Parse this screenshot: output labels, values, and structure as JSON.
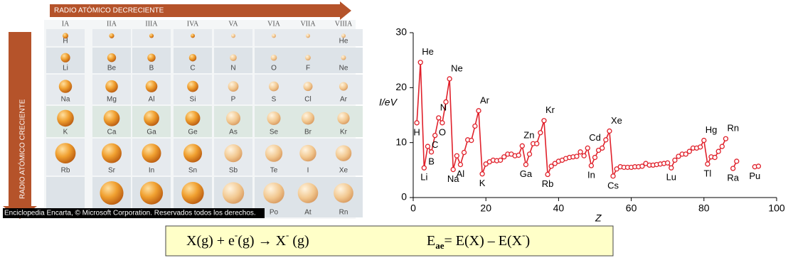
{
  "table": {
    "title_top": "RADIO ATÓMICO DECRECIENTE",
    "title_side": "RADIO ATÓMICO CRECIENTE",
    "groups": [
      "IA",
      "IIA",
      "IIIA",
      "IVA",
      "VA",
      "VIA",
      "VIIA",
      "VIIIA"
    ],
    "rows": [
      [
        "H",
        null,
        null,
        null,
        null,
        null,
        null,
        "He"
      ],
      [
        "Li",
        "Be",
        "B",
        "C",
        "N",
        "O",
        "F",
        "Ne"
      ],
      [
        "Na",
        "Mg",
        "Al",
        "Si",
        "P",
        "S",
        "Cl",
        "Ar"
      ],
      [
        "K",
        "Ca",
        "Ga",
        "Ge",
        "As",
        "Se",
        "Br",
        "Kr"
      ],
      [
        "Rb",
        "Sr",
        "In",
        "Sn",
        "Sb",
        "Te",
        "I",
        "Xe"
      ],
      [
        null,
        null,
        null,
        null,
        null,
        "Po",
        "At",
        "Rn"
      ]
    ],
    "credit": "Enciclopedia Encarta, © Microsoft Corporation. Reservados todos los derechos."
  },
  "chart_data": {
    "type": "line",
    "ylabel": "I/eV",
    "xlabel": "Z",
    "color": "#e0202a",
    "xlim": [
      0,
      100
    ],
    "xticks": [
      0,
      20,
      40,
      60,
      80,
      100
    ],
    "ylim": [
      0,
      30
    ],
    "yticks": [
      0,
      10,
      20,
      30
    ],
    "x": [
      1,
      2,
      3,
      4,
      5,
      6,
      7,
      8,
      9,
      10,
      11,
      12,
      13,
      14,
      15,
      16,
      17,
      18,
      19,
      20,
      21,
      22,
      23,
      24,
      25,
      26,
      27,
      28,
      29,
      30,
      31,
      32,
      33,
      34,
      35,
      36,
      37,
      38,
      39,
      40,
      41,
      42,
      43,
      44,
      45,
      46,
      47,
      48,
      49,
      50,
      51,
      52,
      53,
      54,
      55,
      56,
      57,
      58,
      59,
      60,
      61,
      62,
      63,
      64,
      65,
      66,
      67,
      68,
      69,
      70,
      71,
      72,
      73,
      74,
      75,
      76,
      77,
      78,
      79,
      80,
      81,
      82,
      83,
      84,
      85,
      86,
      87,
      88,
      89,
      90,
      94,
      95
    ],
    "values": [
      13.6,
      24.6,
      5.4,
      9.3,
      8.3,
      11.3,
      14.5,
      13.6,
      17.4,
      21.6,
      5.1,
      7.6,
      6.0,
      8.2,
      10.5,
      10.4,
      13.0,
      15.8,
      4.3,
      6.1,
      6.5,
      6.8,
      6.7,
      6.8,
      7.4,
      7.9,
      7.9,
      7.6,
      7.7,
      9.4,
      6.0,
      7.9,
      9.8,
      9.8,
      11.8,
      14.0,
      4.2,
      5.7,
      6.2,
      6.6,
      6.8,
      7.1,
      7.3,
      7.4,
      7.5,
      8.3,
      7.6,
      9.0,
      5.8,
      7.3,
      8.6,
      9.0,
      10.5,
      12.1,
      3.9,
      5.2,
      5.6,
      5.5,
      5.5,
      5.5,
      5.6,
      5.6,
      5.7,
      6.2,
      5.9,
      5.9,
      6.0,
      6.1,
      6.2,
      6.3,
      5.4,
      6.8,
      7.5,
      7.9,
      7.9,
      8.4,
      9.0,
      9.0,
      9.2,
      10.4,
      6.1,
      7.4,
      7.3,
      8.4,
      9.3,
      10.7,
      null,
      5.3,
      6.6,
      null,
      5.6,
      5.7
    ],
    "point_labels": [
      "H",
      "He",
      "Li",
      null,
      "B",
      "C",
      "N",
      "O",
      null,
      "Ne",
      "Na",
      null,
      "Al",
      null,
      null,
      null,
      null,
      "Ar",
      "K",
      null,
      null,
      null,
      null,
      null,
      null,
      null,
      null,
      null,
      null,
      "Zn",
      "Ga",
      null,
      null,
      null,
      null,
      "Kr",
      "Rb",
      null,
      null,
      null,
      null,
      null,
      null,
      null,
      null,
      null,
      null,
      "Cd",
      "In",
      null,
      null,
      null,
      null,
      "Xe",
      "Cs",
      null,
      null,
      null,
      null,
      null,
      null,
      null,
      null,
      null,
      null,
      null,
      null,
      null,
      null,
      null,
      "Lu",
      null,
      null,
      null,
      null,
      null,
      null,
      null,
      null,
      "Hg",
      "Tl",
      null,
      null,
      null,
      null,
      "Rn",
      null,
      "Ra",
      null,
      null,
      "Pu",
      null
    ]
  },
  "formula": {
    "reaction": [
      "X(g) + e",
      "-",
      "(g) → X",
      "-",
      " (g)"
    ],
    "definition": [
      "E",
      "ae",
      "= E(X) – E(X",
      "-",
      ")"
    ]
  }
}
